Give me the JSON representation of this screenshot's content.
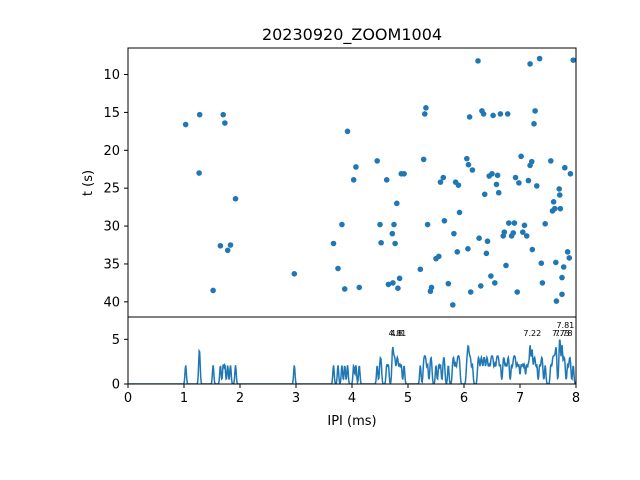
{
  "chart_data": [
    {
      "type": "scatter",
      "title": "20230920_ZOOM1004",
      "xlabel": "",
      "ylabel": "t (s)",
      "xlim": [
        0,
        8
      ],
      "ylim": [
        42,
        6.5
      ],
      "y_inverted": true,
      "yticks": [
        "10",
        "15",
        "20",
        "25",
        "30",
        "35",
        "40"
      ],
      "marker_color": "#1f77b4",
      "grid": false,
      "points": [
        [
          1.03,
          16.6
        ],
        [
          1.28,
          15.3
        ],
        [
          1.27,
          23.0
        ],
        [
          1.52,
          38.5
        ],
        [
          1.65,
          32.6
        ],
        [
          1.7,
          15.3
        ],
        [
          1.73,
          16.4
        ],
        [
          1.78,
          33.2
        ],
        [
          1.83,
          32.5
        ],
        [
          1.92,
          26.4
        ],
        [
          2.97,
          36.3
        ],
        [
          3.67,
          32.3
        ],
        [
          3.75,
          35.6
        ],
        [
          3.82,
          29.8
        ],
        [
          3.87,
          38.3
        ],
        [
          3.92,
          17.5
        ],
        [
          4.03,
          23.9
        ],
        [
          4.07,
          22.2
        ],
        [
          4.13,
          38.1
        ],
        [
          4.45,
          21.4
        ],
        [
          4.5,
          29.8
        ],
        [
          4.52,
          32.2
        ],
        [
          4.62,
          23.9
        ],
        [
          4.65,
          37.7
        ],
        [
          4.72,
          31.0
        ],
        [
          4.73,
          37.5
        ],
        [
          4.75,
          29.8
        ],
        [
          4.77,
          32.3
        ],
        [
          4.8,
          27.0
        ],
        [
          4.82,
          38.2
        ],
        [
          4.85,
          36.9
        ],
        [
          4.88,
          23.1
        ],
        [
          4.93,
          23.1
        ],
        [
          5.22,
          35.7
        ],
        [
          5.28,
          21.2
        ],
        [
          5.3,
          15.2
        ],
        [
          5.32,
          14.4
        ],
        [
          5.35,
          29.8
        ],
        [
          5.4,
          38.6
        ],
        [
          5.42,
          38.1
        ],
        [
          5.5,
          34.3
        ],
        [
          5.55,
          34.0
        ],
        [
          5.58,
          24.2
        ],
        [
          5.63,
          23.6
        ],
        [
          5.65,
          29.3
        ],
        [
          5.72,
          37.6
        ],
        [
          5.8,
          40.4
        ],
        [
          5.82,
          31.0
        ],
        [
          5.85,
          24.2
        ],
        [
          5.88,
          33.4
        ],
        [
          5.9,
          24.6
        ],
        [
          5.92,
          28.2
        ],
        [
          6.05,
          21.1
        ],
        [
          6.07,
          33.0
        ],
        [
          6.08,
          21.9
        ],
        [
          6.1,
          15.6
        ],
        [
          6.12,
          38.7
        ],
        [
          6.15,
          22.6
        ],
        [
          6.25,
          8.2
        ],
        [
          6.27,
          31.6
        ],
        [
          6.3,
          37.9
        ],
        [
          6.32,
          14.8
        ],
        [
          6.35,
          15.2
        ],
        [
          6.37,
          25.8
        ],
        [
          6.4,
          33.6
        ],
        [
          6.42,
          32.0
        ],
        [
          6.45,
          23.4
        ],
        [
          6.48,
          36.6
        ],
        [
          6.5,
          23.1
        ],
        [
          6.52,
          15.4
        ],
        [
          6.55,
          37.5
        ],
        [
          6.58,
          24.5
        ],
        [
          6.6,
          23.3
        ],
        [
          6.62,
          25.6
        ],
        [
          6.65,
          15.2
        ],
        [
          6.7,
          31.3
        ],
        [
          6.72,
          30.8
        ],
        [
          6.75,
          35.2
        ],
        [
          6.78,
          15.2
        ],
        [
          6.8,
          29.6
        ],
        [
          6.85,
          31.3
        ],
        [
          6.88,
          30.9
        ],
        [
          6.9,
          29.6
        ],
        [
          6.92,
          23.6
        ],
        [
          6.95,
          38.7
        ],
        [
          6.98,
          24.3
        ],
        [
          7.02,
          20.8
        ],
        [
          7.05,
          30.8
        ],
        [
          7.08,
          29.9
        ],
        [
          7.12,
          31.3
        ],
        [
          7.15,
          24.0
        ],
        [
          7.18,
          8.6
        ],
        [
          7.22,
          33.1
        ],
        [
          7.25,
          16.5
        ],
        [
          7.27,
          14.8
        ],
        [
          7.3,
          24.7
        ],
        [
          7.35,
          7.9
        ],
        [
          7.38,
          34.9
        ],
        [
          7.4,
          37.5
        ],
        [
          7.45,
          29.7
        ],
        [
          7.55,
          21.4
        ],
        [
          7.58,
          28.0
        ],
        [
          7.6,
          26.8
        ],
        [
          7.62,
          27.7
        ],
        [
          7.65,
          39.9
        ],
        [
          7.7,
          25.1
        ],
        [
          7.72,
          27.7
        ],
        [
          7.75,
          39.0
        ],
        [
          7.78,
          35.4
        ],
        [
          7.8,
          22.3
        ],
        [
          7.85,
          33.4
        ],
        [
          7.88,
          34.2
        ],
        [
          7.9,
          23.1
        ],
        [
          7.95,
          8.1
        ],
        [
          7.18,
          22.0
        ],
        [
          7.21,
          21.5
        ],
        [
          7.64,
          34.8
        ],
        [
          7.71,
          25.9
        ],
        [
          7.75,
          36.8
        ]
      ]
    },
    {
      "type": "line",
      "title": "",
      "xlabel": "IPI (ms)",
      "ylabel": "",
      "xlim": [
        0,
        8
      ],
      "ylim": [
        0,
        7.5
      ],
      "xticks": [
        "0",
        "1",
        "2",
        "3",
        "4",
        "5",
        "6",
        "7",
        "8"
      ],
      "yticks": [
        "0",
        "5"
      ],
      "line_color": "#1f77b4",
      "grid": false,
      "peak_labels": [
        "4.8",
        "4.81",
        "7.22",
        "7.81",
        "7.73",
        "7.78"
      ]
    }
  ]
}
